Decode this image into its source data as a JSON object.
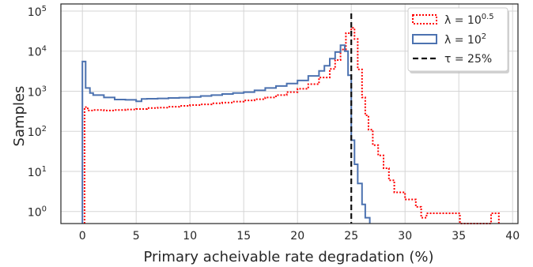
{
  "chart_data": {
    "type": "histogram-step",
    "xlabel": "Primary acheivable rate degradation (%)",
    "ylabel": "Samples",
    "xlim": [
      -2,
      40.5
    ],
    "ylim": [
      0.5,
      150000
    ],
    "yscale": "log",
    "grid": true,
    "legend_position": "top-right",
    "x_ticks": [
      0,
      5,
      10,
      15,
      20,
      25,
      30,
      35,
      40
    ],
    "x_tick_labels": [
      "0",
      "5",
      "10",
      "15",
      "20",
      "25",
      "30",
      "35",
      "40"
    ],
    "y_ticks": [
      1,
      10,
      100,
      1000,
      10000,
      100000
    ],
    "y_tick_labels": [
      {
        "base": "10",
        "exp": "0"
      },
      {
        "base": "10",
        "exp": "1"
      },
      {
        "base": "10",
        "exp": "2"
      },
      {
        "base": "10",
        "exp": "3"
      },
      {
        "base": "10",
        "exp": "4"
      },
      {
        "base": "10",
        "exp": "5"
      }
    ],
    "series": [
      {
        "label": {
          "pre": "λ = 10",
          "sup": "0.5"
        },
        "color": "#ff0000",
        "style": "dotted",
        "steps": [
          [
            0.2,
            400
          ],
          [
            0.5,
            330
          ],
          [
            1,
            340
          ],
          [
            2,
            330
          ],
          [
            3,
            340
          ],
          [
            4,
            350
          ],
          [
            5,
            360
          ],
          [
            6,
            380
          ],
          [
            7,
            390
          ],
          [
            8,
            410
          ],
          [
            9,
            430
          ],
          [
            10,
            450
          ],
          [
            11,
            470
          ],
          [
            12,
            500
          ],
          [
            13,
            520
          ],
          [
            14,
            550
          ],
          [
            15,
            590
          ],
          [
            16,
            630
          ],
          [
            17,
            700
          ],
          [
            18,
            800
          ],
          [
            19,
            950
          ],
          [
            20,
            1150
          ],
          [
            21,
            1500
          ],
          [
            22,
            2200
          ],
          [
            23,
            3600
          ],
          [
            23.5,
            6000
          ],
          [
            24,
            11000
          ],
          [
            24.5,
            28000
          ],
          [
            25,
            38000
          ],
          [
            25.3,
            20000
          ],
          [
            25.6,
            3500
          ],
          [
            26,
            700
          ],
          [
            26.3,
            250
          ],
          [
            26.6,
            110
          ],
          [
            27,
            45
          ],
          [
            27.5,
            25
          ],
          [
            28,
            12
          ],
          [
            28.5,
            6
          ],
          [
            29,
            3
          ],
          [
            30,
            2
          ],
          [
            31,
            1.3
          ],
          [
            31.5,
            0.7
          ],
          [
            32,
            0.9
          ],
          [
            34.5,
            0.9
          ],
          [
            35.1,
            0.5
          ],
          [
            38,
            0.9
          ],
          [
            38.5,
            0.9
          ]
        ]
      },
      {
        "label": {
          "pre": "λ = 10",
          "sup": "2"
        },
        "color": "#4c72b0",
        "style": "solid",
        "steps": [
          [
            0,
            5500
          ],
          [
            0.3,
            1200
          ],
          [
            0.7,
            900
          ],
          [
            1,
            800
          ],
          [
            2,
            700
          ],
          [
            3,
            620
          ],
          [
            4,
            610
          ],
          [
            5,
            560
          ],
          [
            5.5,
            640
          ],
          [
            6,
            650
          ],
          [
            7,
            660
          ],
          [
            8,
            680
          ],
          [
            9,
            690
          ],
          [
            10,
            720
          ],
          [
            11,
            760
          ],
          [
            12,
            800
          ],
          [
            13,
            850
          ],
          [
            14,
            900
          ],
          [
            15,
            950
          ],
          [
            16,
            1050
          ],
          [
            17,
            1200
          ],
          [
            18,
            1350
          ],
          [
            19,
            1550
          ],
          [
            20,
            1850
          ],
          [
            21,
            2400
          ],
          [
            22,
            3200
          ],
          [
            22.5,
            4300
          ],
          [
            23,
            6500
          ],
          [
            23.5,
            9500
          ],
          [
            24,
            14000
          ],
          [
            24.4,
            10000
          ],
          [
            24.7,
            2500
          ],
          [
            25,
            60
          ],
          [
            25.3,
            15
          ],
          [
            25.6,
            5
          ],
          [
            26,
            1.5
          ],
          [
            26.3,
            0.7
          ],
          [
            26.5,
            0.7
          ]
        ]
      },
      {
        "label": {
          "pre": "τ = 25%",
          "sup": ""
        },
        "color": "#111111",
        "style": "dashed",
        "vline_x": 25
      }
    ]
  }
}
